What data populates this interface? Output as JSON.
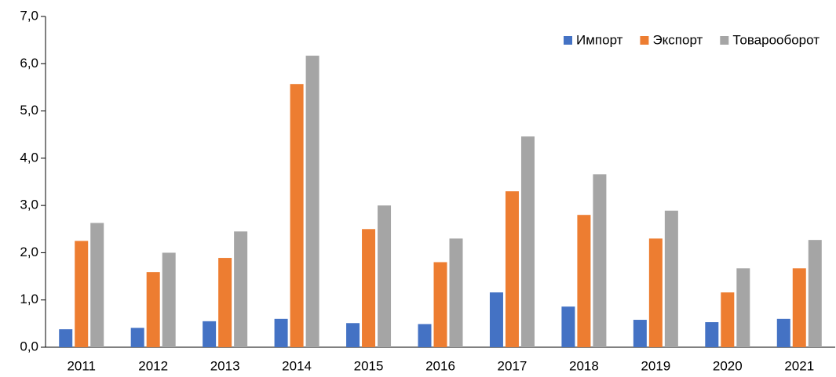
{
  "chart_data": {
    "type": "bar",
    "categories": [
      "2011",
      "2012",
      "2013",
      "2014",
      "2015",
      "2016",
      "2017",
      "2018",
      "2019",
      "2020",
      "2021"
    ],
    "series": [
      {
        "name": "Импорт",
        "color": "#4472c4",
        "values": [
          0.38,
          0.41,
          0.55,
          0.6,
          0.51,
          0.49,
          1.16,
          0.86,
          0.58,
          0.53,
          0.6
        ]
      },
      {
        "name": "Экспорт",
        "color": "#ed7d31",
        "values": [
          2.25,
          1.59,
          1.89,
          5.57,
          2.5,
          1.8,
          3.3,
          2.8,
          2.3,
          1.16,
          1.67
        ]
      },
      {
        "name": "Товарооборот",
        "color": "#a5a5a5",
        "values": [
          2.63,
          2.0,
          2.45,
          6.17,
          3.0,
          2.3,
          4.46,
          3.66,
          2.89,
          1.67,
          2.27
        ]
      }
    ],
    "ylim": [
      0,
      7
    ],
    "yticks": [
      {
        "value": 0,
        "label": "0,0"
      },
      {
        "value": 1,
        "label": "1,0"
      },
      {
        "value": 2,
        "label": "2,0"
      },
      {
        "value": 3,
        "label": "3,0"
      },
      {
        "value": 4,
        "label": "4,0"
      },
      {
        "value": 5,
        "label": "5,0"
      },
      {
        "value": 6,
        "label": "6,0"
      },
      {
        "value": 7,
        "label": "7,0"
      }
    ],
    "grid": false,
    "legend": "upper right"
  }
}
